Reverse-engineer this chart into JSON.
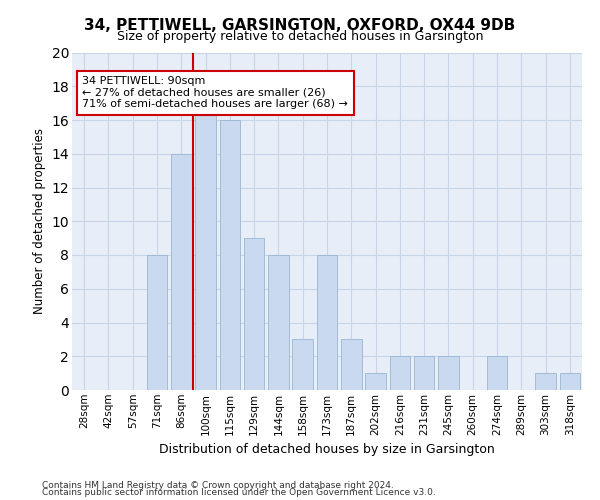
{
  "title": "34, PETTIWELL, GARSINGTON, OXFORD, OX44 9DB",
  "subtitle": "Size of property relative to detached houses in Garsington",
  "xlabel": "Distribution of detached houses by size in Garsington",
  "ylabel": "Number of detached properties",
  "categories": [
    "28sqm",
    "42sqm",
    "57sqm",
    "71sqm",
    "86sqm",
    "100sqm",
    "115sqm",
    "129sqm",
    "144sqm",
    "158sqm",
    "173sqm",
    "187sqm",
    "202sqm",
    "216sqm",
    "231sqm",
    "245sqm",
    "260sqm",
    "274sqm",
    "289sqm",
    "303sqm",
    "318sqm"
  ],
  "values": [
    0,
    0,
    0,
    8,
    14,
    17,
    16,
    9,
    8,
    3,
    8,
    3,
    1,
    2,
    2,
    2,
    0,
    2,
    0,
    1,
    1
  ],
  "highlight_index": 5,
  "bar_color": "#c9d9f0",
  "bar_edge_color": "#9ab5d0",
  "highlight_line_color": "#cc0000",
  "ylim": [
    0,
    20
  ],
  "yticks": [
    0,
    2,
    4,
    6,
    8,
    10,
    12,
    14,
    16,
    18,
    20
  ],
  "annotation_text": "34 PETTIWELL: 90sqm\n← 27% of detached houses are smaller (26)\n71% of semi-detached houses are larger (68) →",
  "annotation_box_color": "#ffffff",
  "annotation_box_edge": "#cc0000",
  "footer1": "Contains HM Land Registry data © Crown copyright and database right 2024.",
  "footer2": "Contains public sector information licensed under the Open Government Licence v3.0.",
  "grid_color": "#c8d4e8",
  "background_color": "#e8eef8",
  "title_fontsize": 11,
  "subtitle_fontsize": 9
}
